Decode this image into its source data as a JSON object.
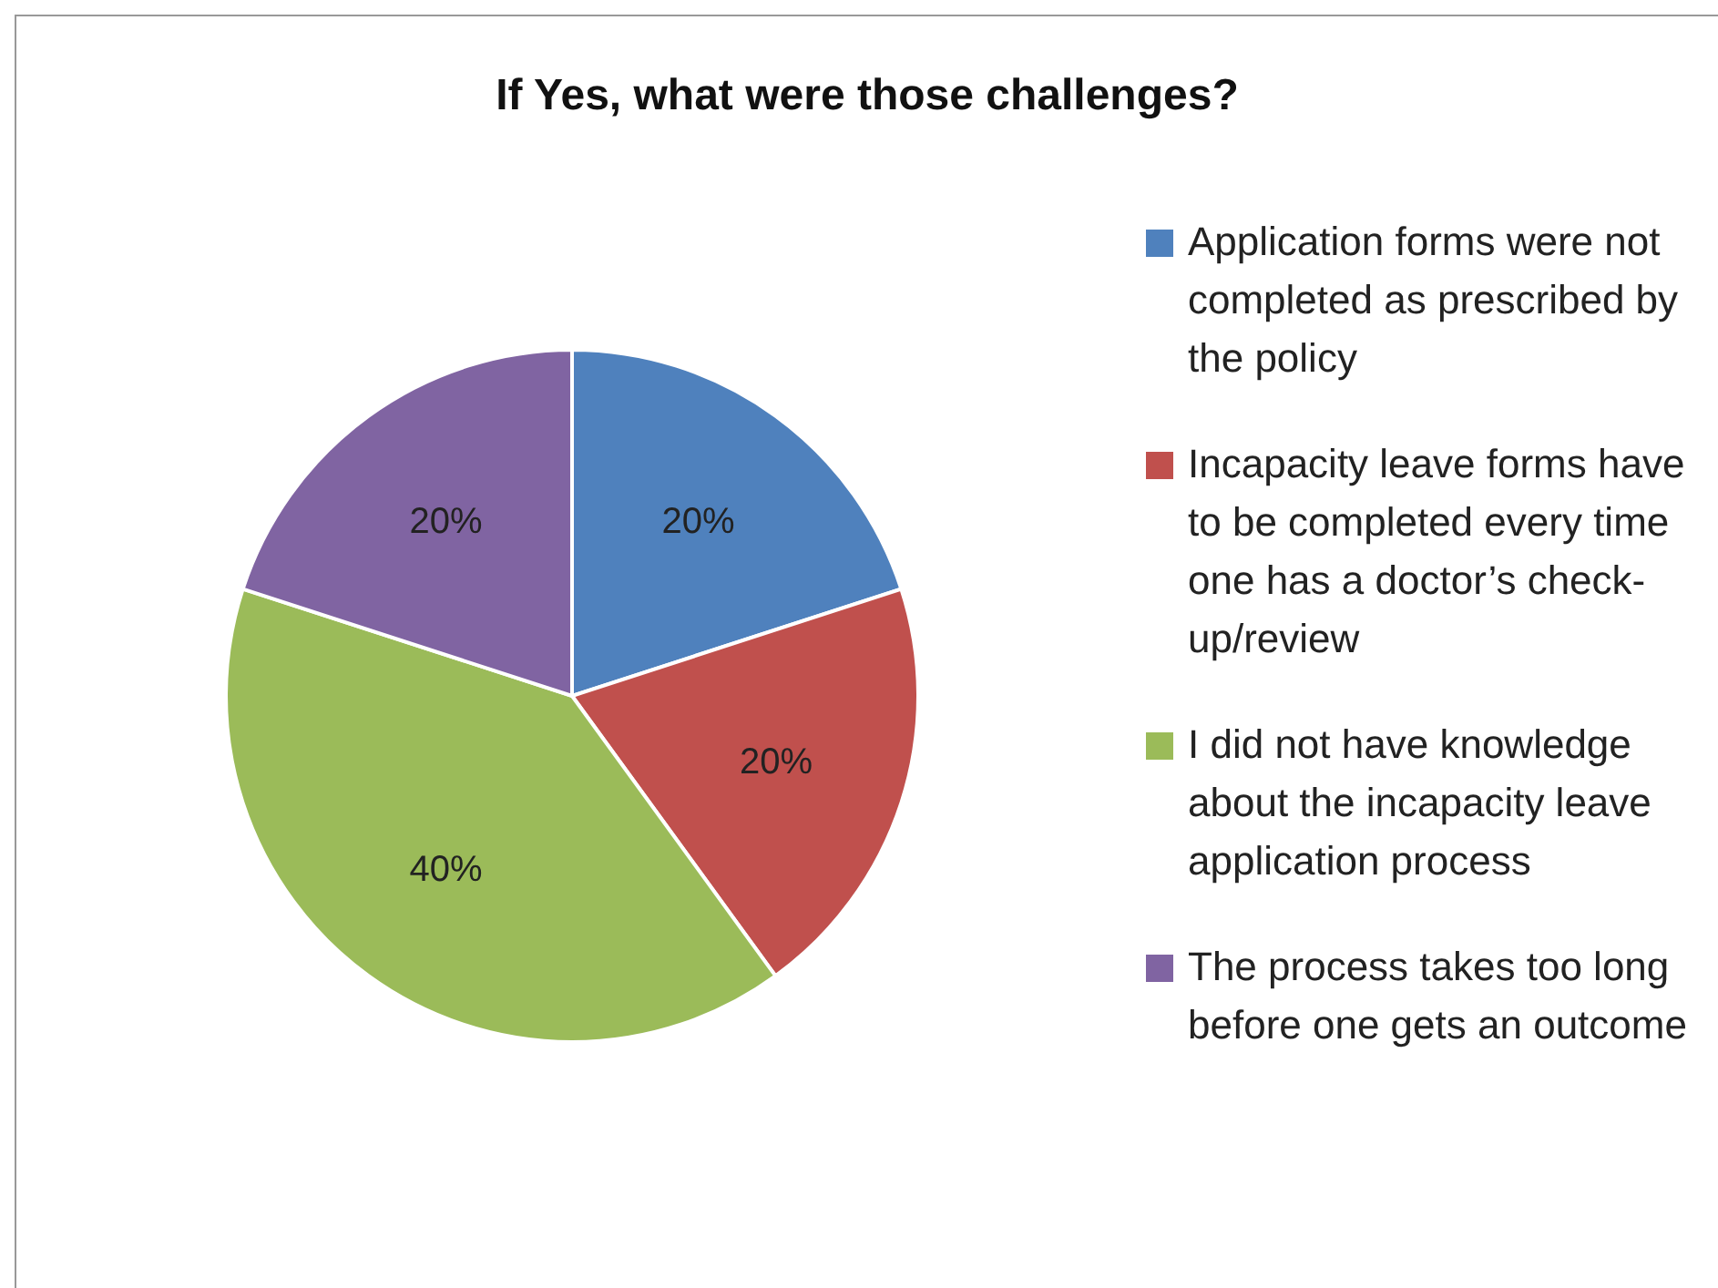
{
  "chart_data": {
    "type": "pie",
    "title": "If Yes, what were those challenges?",
    "categories": [
      "Application forms were not completed as prescribed by the policy",
      "Incapacity leave forms have to be completed every time one has a doctor’s check-up/review",
      "I did not  have knowledge about the incapacity leave application process",
      "The process takes too long before one gets an outcome"
    ],
    "values": [
      20,
      20,
      40,
      20
    ],
    "colors": [
      "#4f81bd",
      "#c0504d",
      "#9bbb59",
      "#8064a2"
    ],
    "value_labels": [
      "20%",
      "20%",
      "40%",
      "20%"
    ],
    "legend": "right"
  }
}
